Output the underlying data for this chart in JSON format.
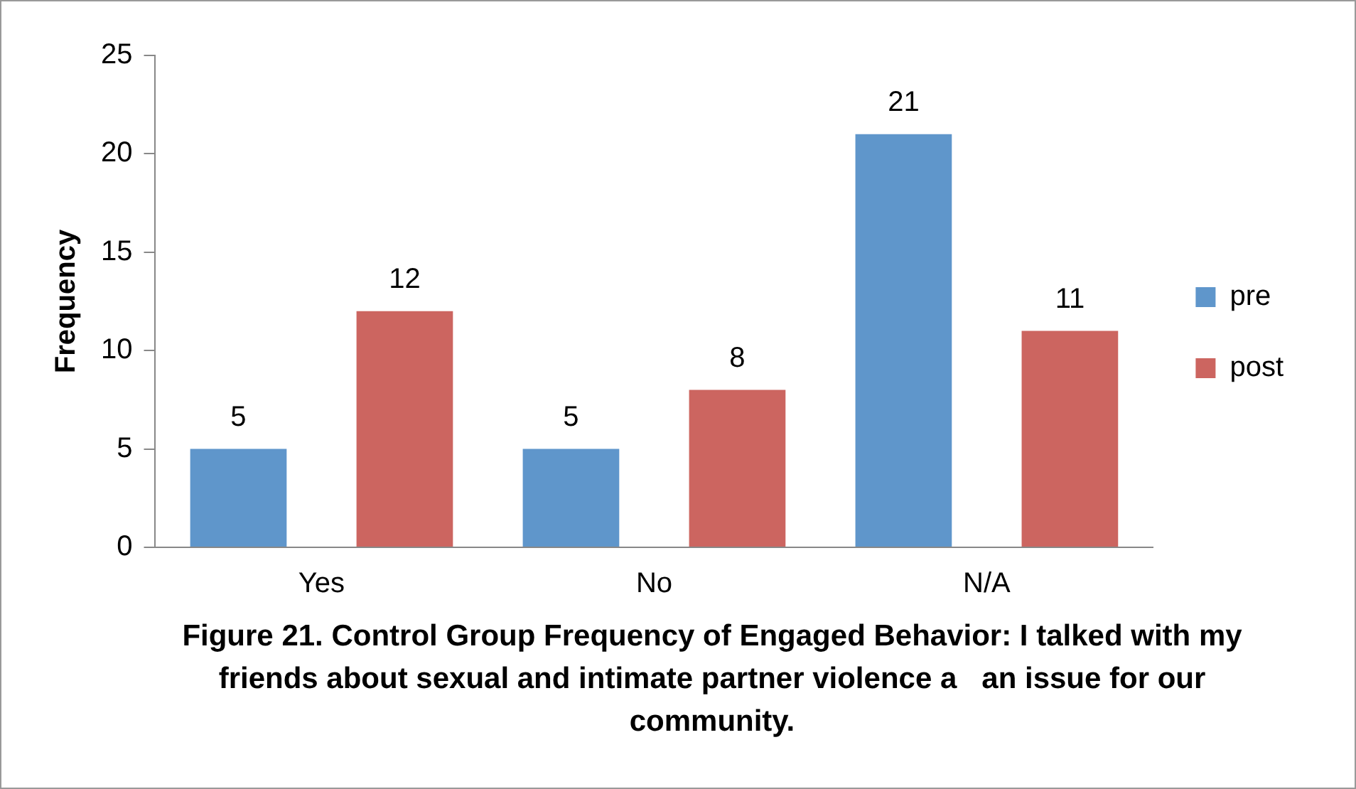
{
  "chart_data": {
    "type": "bar",
    "title": "Figure 21. Control Group Frequency of Engaged Behavior: I talked with my friends about sexual and intimate partner violence a   an issue for our community.",
    "ylabel": "Frequency",
    "categories": [
      "Yes",
      "No",
      "N/A"
    ],
    "series": [
      {
        "name": "pre",
        "color": "#5f96cb",
        "values": [
          5,
          5,
          21
        ]
      },
      {
        "name": "post",
        "color": "#cc6560",
        "values": [
          12,
          8,
          11
        ]
      }
    ],
    "ylim": [
      0,
      25
    ],
    "yticks": [
      0,
      5,
      10,
      15,
      20,
      25
    ],
    "grid": false,
    "legend": "right",
    "data_labels": true
  }
}
